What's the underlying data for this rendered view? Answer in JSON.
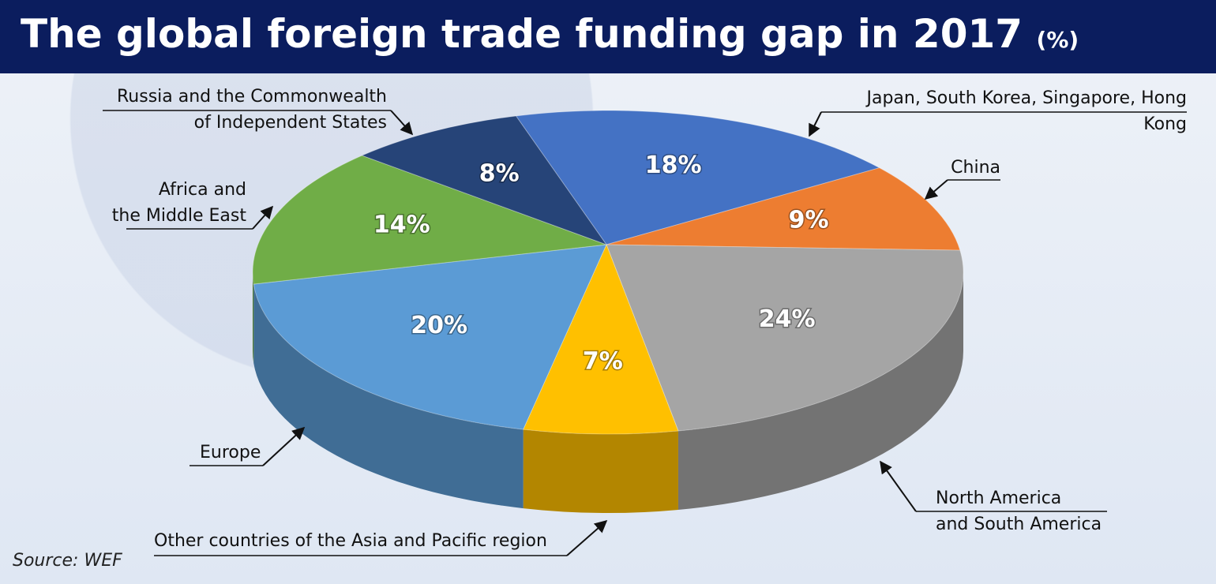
{
  "title": "The global foreign trade funding gap in 2017",
  "subtitle": "(%)",
  "source": "Source: WEF",
  "chart_data": {
    "type": "pie",
    "categories": [
      "Japan, South Korea, Singapore, Hong Kong",
      "China",
      "North America\nand South America",
      "Other countries of the Asia and Pacific region",
      "Europe",
      "Africa and\nthe Middle East",
      "Russia and the Commonwealth\nof Independent States"
    ],
    "values": [
      18,
      9,
      24,
      7,
      20,
      14,
      8
    ],
    "value_labels": [
      "18%",
      "9%",
      "24%",
      "7%",
      "20%",
      "14%",
      "8%"
    ],
    "colors": [
      "#4472c4",
      "#ed7d31",
      "#a5a5a5",
      "#ffc000",
      "#5b9bd5",
      "#70ad47",
      "#264478"
    ]
  }
}
